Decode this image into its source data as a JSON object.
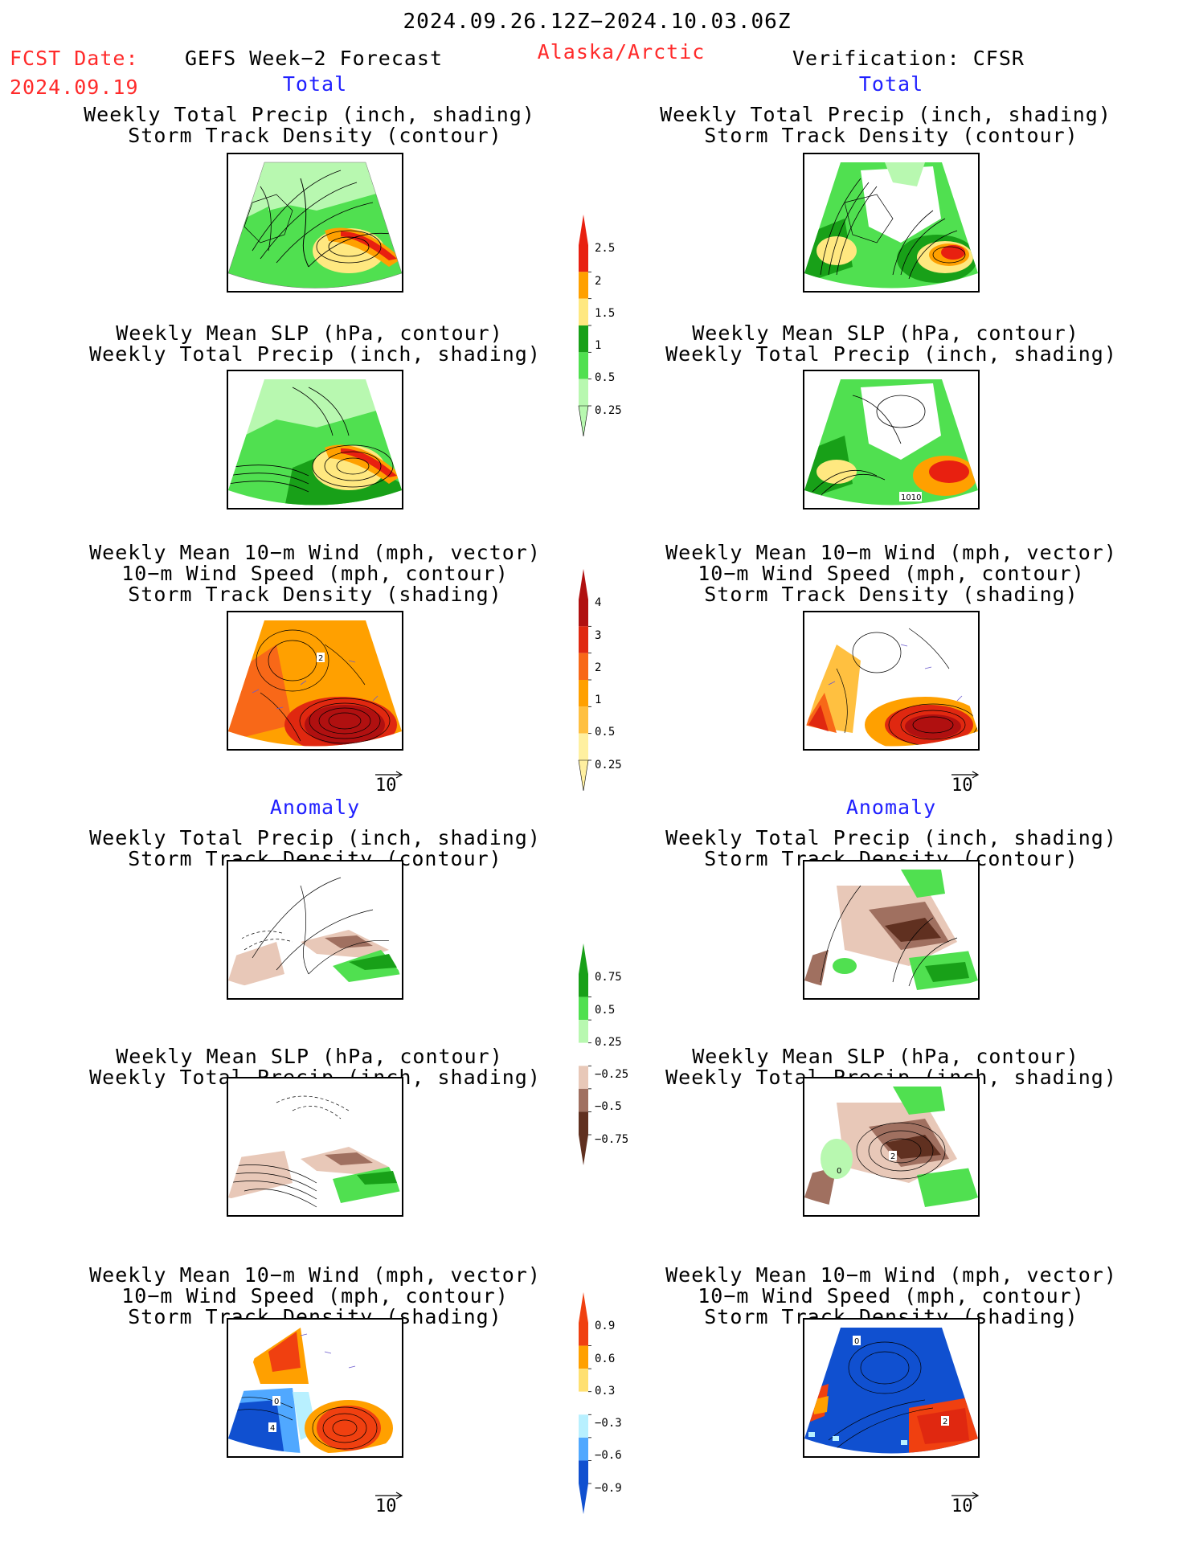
{
  "header": {
    "date_range": "2024.09.26.12Z−2024.10.03.06Z",
    "fcst_label": "FCST Date:",
    "fcst_date": "2024.09.19",
    "forecast_title": "GEFS Week−2 Forecast",
    "region": "Alaska/Arctic",
    "verification": "Verification: CFSR"
  },
  "sections": {
    "total": "Total",
    "anomaly": "Anomaly"
  },
  "titles": {
    "precip_track": [
      "Weekly Total Precip (inch, shading)",
      "Storm Track Density (contour)"
    ],
    "slp_precip": [
      "Weekly Mean SLP (hPa, contour)",
      "Weekly Total Precip (inch, shading)"
    ],
    "wind_track": [
      "Weekly Mean 10−m Wind (mph, vector)",
      "10−m Wind Speed (mph, contour)",
      "Storm Track Density (shading)"
    ]
  },
  "vector_ref": "10",
  "contour_labels": {
    "slp_1010": "1010",
    "track_2": "2",
    "track_4": "4",
    "track_0": "0"
  },
  "colorbars": {
    "precip_total": {
      "labels": [
        "2.5",
        "2",
        "1.5",
        "1",
        "0.5",
        "0.25"
      ],
      "colors": [
        "#e82010",
        "#ffa000",
        "#ffe880",
        "#18a018",
        "#50e050",
        "#b8f8b0"
      ]
    },
    "track_total": {
      "labels": [
        "4",
        "3",
        "2",
        "1",
        "0.5",
        "0.25"
      ],
      "colors": [
        "#b01010",
        "#e02810",
        "#f86818",
        "#ffa000",
        "#ffc040",
        "#fff0a0"
      ]
    },
    "precip_anom": {
      "labels": [
        "0.75",
        "0.5",
        "0.25",
        "−0.25",
        "−0.5",
        "−0.75"
      ],
      "colors": [
        "#18a018",
        "#50e050",
        "#b8f8b0",
        "#ffffff",
        "#e8c8b8",
        "#a07060",
        "#603020"
      ]
    },
    "track_anom": {
      "labels": [
        "0.9",
        "0.6",
        "0.3",
        "−0.3",
        "−0.6",
        "−0.9"
      ],
      "colors": [
        "#f04010",
        "#ffa000",
        "#ffe070",
        "#ffffff",
        "#b8f0ff",
        "#50a8ff",
        "#1050d0"
      ]
    }
  },
  "colors": {
    "title_red": "#ff2a2a",
    "section_blue": "#2020ff"
  }
}
